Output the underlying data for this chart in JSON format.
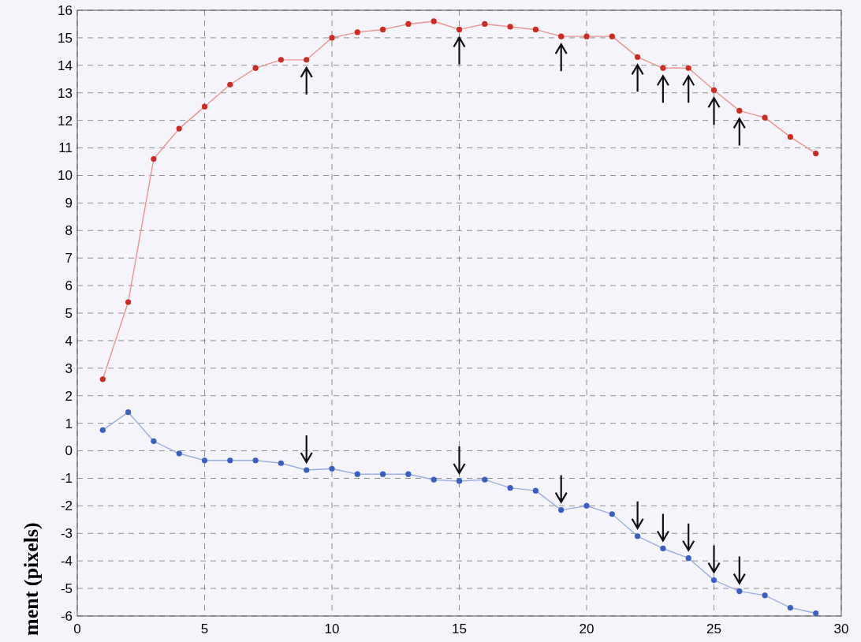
{
  "chart_data": {
    "type": "line",
    "ylabel": "ment (pixels)",
    "x": [
      1,
      2,
      3,
      4,
      5,
      6,
      7,
      8,
      9,
      10,
      11,
      12,
      13,
      14,
      15,
      16,
      17,
      18,
      19,
      20,
      21,
      22,
      23,
      24,
      25,
      26,
      27,
      28,
      29
    ],
    "series": [
      {
        "color": "#cc2a22",
        "values": [
          2.6,
          5.4,
          10.6,
          11.7,
          12.5,
          13.3,
          13.9,
          14.2,
          14.2,
          15.0,
          15.2,
          15.3,
          15.5,
          15.6,
          15.3,
          15.5,
          15.4,
          15.3,
          15.05,
          15.05,
          15.05,
          14.3,
          13.9,
          13.9,
          13.1,
          12.35,
          12.1,
          11.4,
          10.8
        ]
      },
      {
        "color": "#3a5fc0",
        "values": [
          0.75,
          1.4,
          0.35,
          -0.1,
          -0.35,
          -0.35,
          -0.35,
          -0.45,
          -0.7,
          -0.65,
          -0.85,
          -0.85,
          -0.85,
          -1.05,
          -1.1,
          -1.05,
          -1.35,
          -1.45,
          -2.15,
          -2.0,
          -2.3,
          -3.1,
          -3.55,
          -3.9,
          -4.7,
          -5.1,
          -5.25,
          -5.7,
          -5.9
        ]
      }
    ],
    "xlim": [
      0,
      30
    ],
    "xticks": [
      0,
      5,
      10,
      15,
      20,
      25,
      30
    ],
    "ylim": [
      -6,
      16
    ],
    "yticks": [
      -6,
      -5,
      -4,
      -3,
      -2,
      -1,
      0,
      1,
      2,
      3,
      4,
      5,
      6,
      7,
      8,
      9,
      10,
      11,
      12,
      13,
      14,
      15,
      16
    ],
    "grid": true,
    "marker": "circle",
    "line_style": "solid"
  }
}
